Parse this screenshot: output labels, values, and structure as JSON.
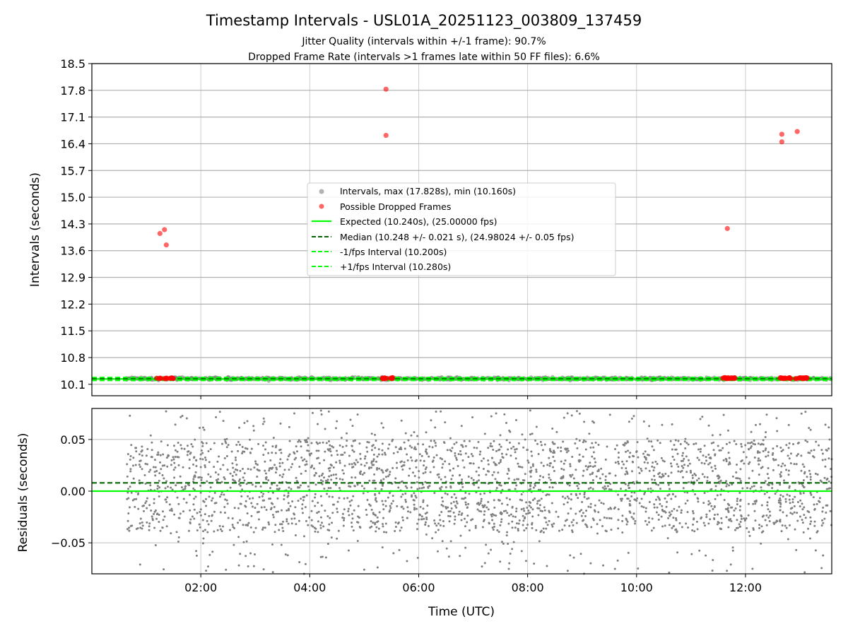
{
  "chart_data": [
    {
      "type": "scatter",
      "title": "Timestamp Intervals - USL01A_20251123_003809_137459",
      "subtitles": [
        "Jitter Quality (intervals within +/-1 frame): 90.7%",
        "Dropped Frame Rate (intervals >1 frames late within 50 FF files): 6.6%"
      ],
      "ylabel": "Intervals (seconds)",
      "xlabel": "",
      "xlim": [
        "00:00",
        "13:35"
      ],
      "ylim": [
        9.8,
        18.5
      ],
      "yticks": [
        "10.1",
        "10.8",
        "11.5",
        "12.2",
        "12.9",
        "13.6",
        "14.3",
        "15.0",
        "15.7",
        "16.4",
        "17.1",
        "17.8",
        "18.5"
      ],
      "grid": true,
      "legend_position": "center",
      "intervals_band": {
        "x_range": [
          "00:38",
          "13:35"
        ],
        "y_range": [
          10.16,
          10.33
        ]
      },
      "series": [
        {
          "name": "Intervals, max (17.828s), min (10.160s)",
          "color": "#808080",
          "style": "scatter"
        },
        {
          "name": "Possible Dropped Frames",
          "color": "#ff0000",
          "style": "scatter",
          "points": [
            [
              "01:15",
              14.05
            ],
            [
              "01:20",
              14.15
            ],
            [
              "01:22",
              13.75
            ],
            [
              "05:24",
              17.83
            ],
            [
              "05:24",
              16.62
            ],
            [
              "11:40",
              14.18
            ],
            [
              "12:40",
              16.45
            ],
            [
              "12:40",
              16.65
            ],
            [
              "12:57",
              16.72
            ]
          ],
          "clusters": [
            [
              "01:10",
              "01:30",
              10.26
            ],
            [
              "05:20",
              "05:32",
              10.26
            ],
            [
              "11:35",
              "11:50",
              10.26
            ],
            [
              "12:38",
              "12:50",
              10.26
            ],
            [
              "12:55",
              "13:08",
              10.26
            ]
          ]
        },
        {
          "name": "Expected (10.240s), (25.00000 fps)",
          "color": "#00ff00",
          "style": "solid",
          "value": 10.24
        },
        {
          "name": "Median (10.248 +/- 0.021 s), (24.98024 +/- 0.05 fps)",
          "color": "#006400",
          "style": "dashed",
          "value": 10.248
        },
        {
          "name": "-1/fps Interval (10.200s)",
          "color": "#00ff00",
          "style": "dashed",
          "value": 10.2
        },
        {
          "name": "+1/fps Interval (10.280s)",
          "color": "#00ff00",
          "style": "dashed",
          "value": 10.28
        }
      ]
    },
    {
      "type": "scatter",
      "title": "",
      "xlabel": "Time (UTC)",
      "ylabel": "Residuals (seconds)",
      "xlim": [
        "00:00",
        "13:35"
      ],
      "ylim": [
        -0.08,
        0.08
      ],
      "xticks": [
        "02:00",
        "04:00",
        "06:00",
        "08:00",
        "10:00",
        "12:00"
      ],
      "yticks": [
        "0.05",
        "0.00",
        "−0.05"
      ],
      "grid": true,
      "residuals": {
        "x_range": [
          "00:38",
          "13:35"
        ],
        "typical_range": [
          -0.04,
          0.05
        ],
        "extremes": [
          -0.08,
          0.078
        ],
        "color": "#808080"
      },
      "series": [
        {
          "name": "Expected",
          "color": "#00ff00",
          "style": "solid",
          "value": 0.0
        },
        {
          "name": "Median",
          "color": "#006400",
          "style": "dashed",
          "value": 0.008
        }
      ]
    }
  ]
}
